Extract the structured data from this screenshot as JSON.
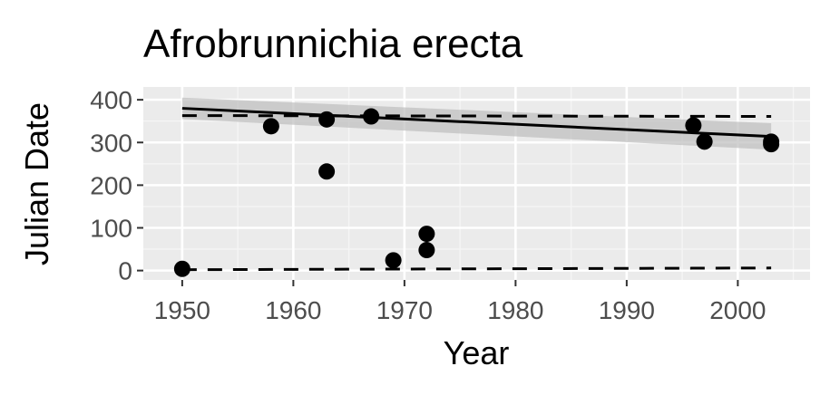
{
  "chart_data": {
    "type": "scatter",
    "title": "Afrobrunnichia erecta",
    "xlabel": "Year",
    "ylabel": "Julian Date",
    "xlim": [
      1946.5,
      2006.5
    ],
    "ylim": [
      -22,
      430
    ],
    "x_ticks": [
      "1950",
      "1960",
      "1970",
      "1980",
      "1990",
      "2000"
    ],
    "y_ticks": [
      "0",
      "100",
      "200",
      "300",
      "400"
    ],
    "grid": true,
    "legend": "none",
    "colors": {
      "panel": "#ebebeb",
      "grid_major": "#ffffff",
      "grid_minor": "#f5f5f5",
      "points": "#000000",
      "ribbon": "#bdbdbd"
    },
    "points": [
      {
        "x": 1950,
        "y": 4
      },
      {
        "x": 1958,
        "y": 338
      },
      {
        "x": 1963,
        "y": 354
      },
      {
        "x": 1963,
        "y": 232
      },
      {
        "x": 1967,
        "y": 361
      },
      {
        "x": 1969,
        "y": 24
      },
      {
        "x": 1972,
        "y": 86
      },
      {
        "x": 1972,
        "y": 48
      },
      {
        "x": 1996,
        "y": 340
      },
      {
        "x": 1997,
        "y": 302
      },
      {
        "x": 2003,
        "y": 302
      },
      {
        "x": 2003,
        "y": 296
      }
    ],
    "trend_line": {
      "x": [
        1950,
        2003
      ],
      "y": [
        380,
        314
      ]
    },
    "confidence_band": {
      "x": [
        1950,
        2003
      ],
      "upper": [
        405,
        345
      ],
      "lower": [
        355,
        283
      ]
    },
    "dashed_upper": {
      "x": [
        1950,
        2003
      ],
      "y": [
        363,
        361
      ]
    },
    "dashed_lower": {
      "x": [
        1950,
        2003
      ],
      "y": [
        2,
        6
      ]
    }
  }
}
